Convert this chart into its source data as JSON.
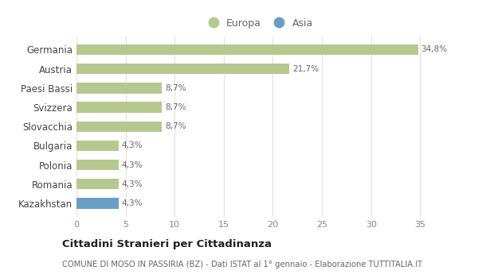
{
  "categories": [
    "Germania",
    "Austria",
    "Paesi Bassi",
    "Svizzera",
    "Slovacchia",
    "Bulgaria",
    "Polonia",
    "Romania",
    "Kazakhstan"
  ],
  "values": [
    34.8,
    21.7,
    8.7,
    8.7,
    8.7,
    4.3,
    4.3,
    4.3,
    4.3
  ],
  "labels": [
    "34,8%",
    "21,7%",
    "8,7%",
    "8,7%",
    "8,7%",
    "4,3%",
    "4,3%",
    "4,3%",
    "4,3%"
  ],
  "colors": [
    "#b5c98e",
    "#b5c98e",
    "#b5c98e",
    "#b5c98e",
    "#b5c98e",
    "#b5c98e",
    "#b5c98e",
    "#b5c98e",
    "#6b9ec7"
  ],
  "europa_color": "#b5c98e",
  "asia_color": "#6b9ec7",
  "title": "Cittadini Stranieri per Cittadinanza",
  "subtitle": "COMUNE DI MOSO IN PASSIRIA (BZ) - Dati ISTAT al 1° gennaio - Elaborazione TUTTITALIA.IT",
  "xlim": [
    0,
    37
  ],
  "xticks": [
    0,
    5,
    10,
    15,
    20,
    25,
    30,
    35
  ],
  "background_color": "#ffffff",
  "grid_color": "#e0e0e0"
}
